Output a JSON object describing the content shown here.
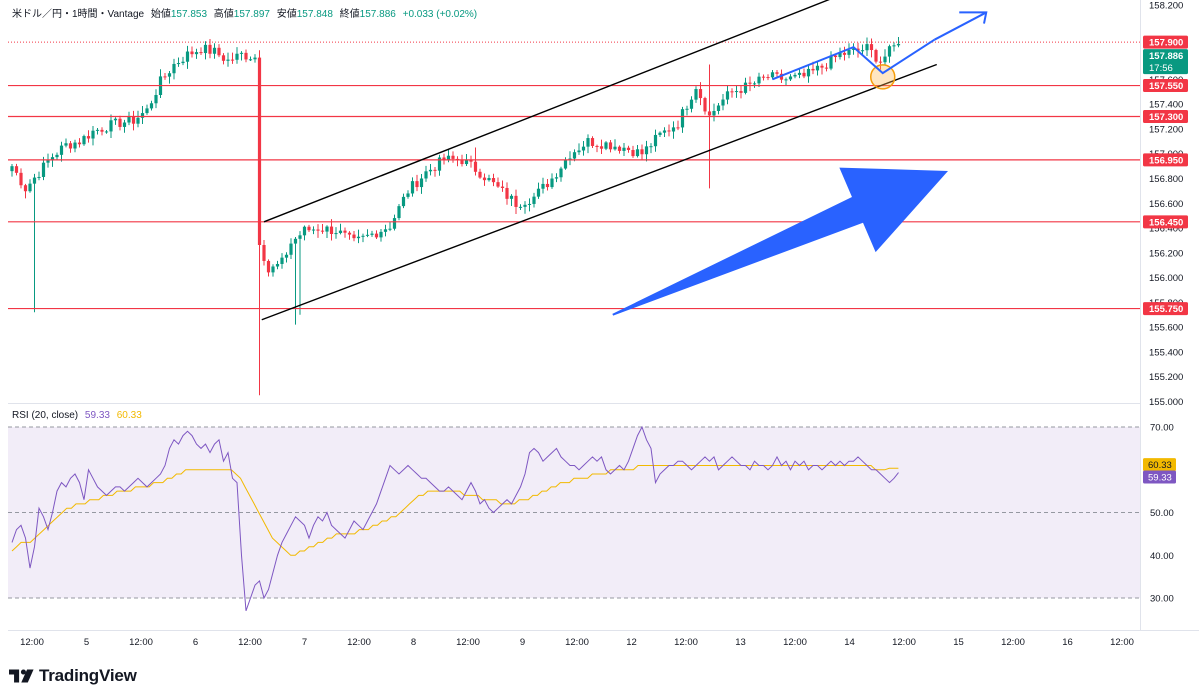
{
  "header": {
    "symbol": "米ドル／円・1時間・Vantage",
    "open_label": "始値",
    "open": "157.853",
    "high_label": "高値",
    "high": "157.897",
    "low_label": "安値",
    "low": "157.848",
    "close_label": "終値",
    "close": "157.886",
    "change": "+0.033 (+0.02%)"
  },
  "rsi_header": {
    "title": "RSI (20, close)",
    "rsi": "59.33",
    "ma": "60.33"
  },
  "brand": {
    "name": "TradingView"
  },
  "colors": {
    "up": "#089981",
    "down": "#f23645",
    "level": "#f23645",
    "rsi": "#7e57c2",
    "rsi_ma": "#f2b900",
    "arrow": "#2962ff"
  },
  "chart_data": [
    {
      "type": "candlestick",
      "title": "米ドル／円・1時間・Vantage",
      "ylim": [
        155.0,
        158.2
      ],
      "y_ticks": [
        "158.200",
        "157.900",
        "157.886",
        "157.600",
        "157.400",
        "157.200",
        "157.000",
        "156.800",
        "156.600",
        "156.400",
        "156.200",
        "156.000",
        "155.800",
        "155.600",
        "155.400",
        "155.200",
        "155.000"
      ],
      "x_tick_labels": [
        "12:00",
        "5",
        "12:00",
        "6",
        "12:00",
        "7",
        "12:00",
        "8",
        "12:00",
        "9",
        "12:00",
        "12",
        "12:00",
        "13",
        "12:00",
        "14",
        "12:00",
        "15",
        "12:00",
        "16",
        "12:00"
      ],
      "price_labels": {
        "high": "157.900",
        "current": "157.886",
        "countdown": "17:56"
      },
      "horizontal_levels": [
        "157.550",
        "157.300",
        "156.950",
        "156.450",
        "155.750"
      ],
      "anchors": [
        {
          "t": 0,
          "p": 156.9
        },
        {
          "t": 3,
          "p": 156.72
        },
        {
          "t": 6,
          "p": 156.85
        },
        {
          "t": 9,
          "p": 156.98
        },
        {
          "t": 12,
          "p": 157.07
        },
        {
          "t": 15,
          "p": 157.1
        },
        {
          "t": 18,
          "p": 157.18
        },
        {
          "t": 21,
          "p": 157.22
        },
        {
          "t": 24,
          "p": 157.25
        },
        {
          "t": 27,
          "p": 157.27
        },
        {
          "t": 30,
          "p": 157.35
        },
        {
          "t": 33,
          "p": 157.58
        },
        {
          "t": 36,
          "p": 157.72
        },
        {
          "t": 39,
          "p": 157.8
        },
        {
          "t": 42,
          "p": 157.85
        },
        {
          "t": 45,
          "p": 157.82
        },
        {
          "t": 48,
          "p": 157.75
        },
        {
          "t": 51,
          "p": 157.8
        },
        {
          "t": 54,
          "p": 157.78
        },
        {
          "t": 55,
          "p": 156.3
        },
        {
          "t": 57,
          "p": 156.05
        },
        {
          "t": 60,
          "p": 156.12
        },
        {
          "t": 62,
          "p": 156.28
        },
        {
          "t": 65,
          "p": 156.38
        },
        {
          "t": 68,
          "p": 156.4
        },
        {
          "t": 72,
          "p": 156.38
        },
        {
          "t": 76,
          "p": 156.28
        },
        {
          "t": 80,
          "p": 156.35
        },
        {
          "t": 84,
          "p": 156.42
        },
        {
          "t": 88,
          "p": 156.7
        },
        {
          "t": 92,
          "p": 156.85
        },
        {
          "t": 96,
          "p": 156.95
        },
        {
          "t": 100,
          "p": 156.95
        },
        {
          "t": 104,
          "p": 156.85
        },
        {
          "t": 108,
          "p": 156.72
        },
        {
          "t": 112,
          "p": 156.6
        },
        {
          "t": 116,
          "p": 156.65
        },
        {
          "t": 120,
          "p": 156.8
        },
        {
          "t": 124,
          "p": 157.0
        },
        {
          "t": 128,
          "p": 157.1
        },
        {
          "t": 132,
          "p": 157.08
        },
        {
          "t": 136,
          "p": 157.05
        },
        {
          "t": 140,
          "p": 157.0
        },
        {
          "t": 144,
          "p": 157.15
        },
        {
          "t": 148,
          "p": 157.25
        },
        {
          "t": 152,
          "p": 157.55
        },
        {
          "t": 155,
          "p": 157.3
        },
        {
          "t": 157,
          "p": 157.4
        },
        {
          "t": 160,
          "p": 157.5
        },
        {
          "t": 164,
          "p": 157.55
        },
        {
          "t": 168,
          "p": 157.62
        },
        {
          "t": 172,
          "p": 157.6
        },
        {
          "t": 176,
          "p": 157.62
        },
        {
          "t": 180,
          "p": 157.7
        },
        {
          "t": 184,
          "p": 157.8
        },
        {
          "t": 188,
          "p": 157.83
        },
        {
          "t": 190,
          "p": 157.85
        },
        {
          "t": 193,
          "p": 157.75
        },
        {
          "t": 196,
          "p": 157.86
        },
        {
          "t": 197,
          "p": 157.886
        }
      ],
      "wick_extremes": [
        {
          "t": 5,
          "p": 155.72
        },
        {
          "t": 55,
          "p": 155.05
        },
        {
          "t": 55.5,
          "p": 156.35
        },
        {
          "t": 63,
          "p": 155.62
        },
        {
          "t": 64,
          "p": 155.7
        },
        {
          "t": 103,
          "p": 157.05
        },
        {
          "t": 155,
          "p": 156.72
        },
        {
          "t": 155.3,
          "p": 157.72
        }
      ]
    },
    {
      "type": "line",
      "title": "RSI (20, close)",
      "ylim": [
        25,
        73
      ],
      "y_ticks": [
        "70.00",
        "60.33",
        "59.33",
        "50.00",
        "40.00",
        "30.00"
      ],
      "band": [
        30,
        70
      ],
      "mid_line": 50,
      "series": [
        {
          "name": "RSI",
          "values": [
            43,
            46,
            47,
            44,
            37,
            42,
            51,
            49,
            46,
            50,
            55,
            57,
            56,
            58,
            59,
            57,
            53,
            60,
            58,
            56,
            55,
            54,
            55,
            56,
            56,
            55,
            56,
            57,
            58,
            57,
            56,
            57,
            58,
            59,
            61,
            65,
            67,
            66,
            68,
            69,
            68,
            66,
            65,
            66,
            64,
            66,
            67,
            62,
            64,
            58,
            57,
            40,
            27,
            30,
            33,
            34,
            30,
            32,
            36,
            40,
            43,
            45,
            47,
            49,
            48,
            47,
            44,
            47,
            49,
            48,
            50,
            47,
            46,
            45,
            44,
            46,
            48,
            47,
            46,
            48,
            50,
            52,
            55,
            58,
            61,
            60,
            59,
            60,
            61,
            60,
            59,
            58,
            58,
            57,
            56,
            55,
            55,
            56,
            55,
            54,
            53,
            55,
            57,
            55,
            52,
            53,
            51,
            50,
            51,
            52,
            53,
            52,
            54,
            56,
            59,
            64,
            65,
            64,
            62,
            63,
            64,
            65,
            63,
            62,
            61,
            61,
            60,
            61,
            62,
            63,
            62,
            63,
            60,
            59,
            60,
            61,
            60,
            62,
            65,
            68,
            70,
            67,
            65,
            57,
            59,
            60,
            61,
            61,
            62,
            62,
            61,
            60,
            61,
            62,
            63,
            62,
            63,
            60,
            61,
            62,
            63,
            62,
            61,
            61,
            60,
            62,
            61,
            61,
            60,
            61,
            63,
            61,
            62,
            60,
            62,
            61,
            62,
            60,
            61,
            61,
            60,
            61,
            62,
            61,
            62,
            61,
            62,
            62,
            63,
            62,
            61,
            60,
            60,
            59,
            58,
            57,
            58,
            59.33
          ]
        },
        {
          "name": "MA",
          "values": [
            41,
            42,
            43,
            43,
            43,
            44,
            45,
            46,
            47,
            48,
            49,
            50,
            51,
            51,
            52,
            52,
            52,
            53,
            53,
            53,
            54,
            54,
            54,
            55,
            55,
            55,
            55,
            56,
            56,
            56,
            56,
            57,
            57,
            57,
            58,
            58,
            59,
            59,
            60,
            60,
            60,
            60,
            60,
            60,
            60,
            60,
            60,
            60,
            60,
            59,
            58,
            56,
            54,
            52,
            50,
            48,
            46,
            44,
            43,
            42,
            41,
            40,
            40,
            41,
            41,
            42,
            42,
            43,
            43,
            44,
            44,
            45,
            45,
            45,
            45,
            45,
            46,
            46,
            46,
            47,
            47,
            48,
            48,
            49,
            49,
            50,
            51,
            52,
            53,
            54,
            54,
            55,
            55,
            55,
            55,
            55,
            55,
            55,
            55,
            54,
            54,
            54,
            54,
            53,
            53,
            53,
            53,
            52,
            52,
            52,
            52,
            53,
            53,
            53,
            54,
            54,
            55,
            55,
            56,
            56,
            57,
            57,
            57,
            58,
            58,
            58,
            58,
            59,
            59,
            59,
            59,
            60,
            60,
            60,
            60,
            60,
            60,
            61,
            61,
            61,
            61,
            61,
            61,
            61,
            61,
            61,
            61,
            61,
            61,
            61,
            61,
            61,
            61,
            61,
            61,
            61,
            61,
            61,
            61,
            61,
            61,
            61,
            61,
            61,
            61,
            61,
            61,
            61,
            61,
            61,
            61,
            61,
            61,
            61,
            61,
            61,
            61,
            61,
            61,
            61,
            61,
            61,
            61,
            61,
            61,
            61,
            61,
            61,
            61,
            60,
            60,
            60,
            60.33,
            60.33,
            60.33
          ]
        }
      ]
    }
  ]
}
